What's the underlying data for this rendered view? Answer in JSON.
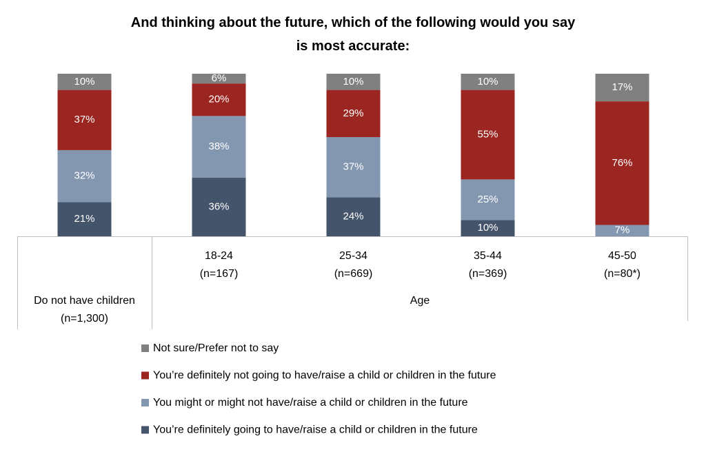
{
  "chart_data": {
    "type": "stacked_bar",
    "title": "And thinking about the future, which of the following would you say is most accurate:",
    "categories": [
      [
        "Do not have children",
        "(n=1,300)"
      ],
      [
        "18-24",
        "(n=167)"
      ],
      [
        "25-34",
        "(n=669)"
      ],
      [
        "35-44",
        "(n=369)"
      ],
      [
        "45-50",
        "(n=80*)"
      ]
    ],
    "category_group": "Age",
    "ylim": [
      0,
      100
    ],
    "series": [
      {
        "name": "You’re definitely going to have/raise a child or children in the future",
        "color": "#44546a",
        "values": [
          21,
          36,
          24,
          10,
          null
        ],
        "value_labels": [
          "21%",
          "36%",
          "24%",
          "10%",
          null
        ]
      },
      {
        "name": "You might or might not have/raise a child or children in the future",
        "color": "#8497b0",
        "values": [
          32,
          38,
          37,
          25,
          7
        ],
        "value_labels": [
          "32%",
          "38%",
          "37%",
          "25%",
          "7%"
        ]
      },
      {
        "name": "You’re definitely not going to have/raise a child or children in the future",
        "color": "#9b2520",
        "values": [
          37,
          20,
          29,
          55,
          76
        ],
        "value_labels": [
          "37%",
          "20%",
          "29%",
          "55%",
          "76%"
        ]
      },
      {
        "name": "Not sure/Prefer not to say",
        "color": "#808080",
        "values": [
          10,
          6,
          10,
          10,
          17
        ],
        "value_labels": [
          "10%",
          "6%",
          "10%",
          "10%",
          "17%"
        ]
      }
    ]
  }
}
